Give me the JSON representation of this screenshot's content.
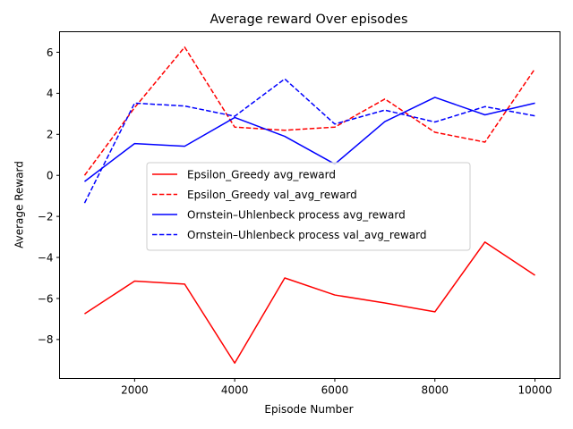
{
  "chart_data": {
    "type": "line",
    "title": "Average reward Over episodes",
    "xlabel": "Episode Number",
    "ylabel": "Average Reward",
    "x": [
      1000,
      2000,
      3000,
      4000,
      5000,
      6000,
      7000,
      8000,
      9000,
      10000
    ],
    "xlim": [
      500,
      10500
    ],
    "ylim": [
      -9.9,
      7.0
    ],
    "x_ticks": [
      2000,
      4000,
      6000,
      8000,
      10000
    ],
    "x_tick_labels": [
      "2000",
      "4000",
      "6000",
      "8000",
      "10000"
    ],
    "y_ticks": [
      -8,
      -6,
      -4,
      -2,
      0,
      2,
      4,
      6
    ],
    "y_tick_labels": [
      "−8",
      "−6",
      "−4",
      "−2",
      "0",
      "2",
      "4",
      "6"
    ],
    "grid": false,
    "legend_position": "center",
    "series": [
      {
        "name": "Epsilon_Greedy avg_reward",
        "color": "#ff0000",
        "style": "solid",
        "values": [
          -6.75,
          -5.15,
          -5.3,
          -9.15,
          -5.0,
          -5.83,
          -6.22,
          -6.65,
          -3.25,
          -4.87
        ]
      },
      {
        "name": "Epsilon_Greedy val_avg_reward",
        "color": "#ff0000",
        "style": "dashed",
        "values": [
          0.0,
          3.3,
          6.25,
          2.35,
          2.2,
          2.35,
          3.72,
          2.1,
          1.62,
          5.2
        ]
      },
      {
        "name": "Ornstein–Uhlenbeck process avg_reward",
        "color": "#0000ff",
        "style": "solid",
        "values": [
          -0.3,
          1.55,
          1.42,
          2.82,
          1.9,
          0.55,
          2.62,
          3.8,
          2.95,
          3.52
        ]
      },
      {
        "name": "Ornstein–Uhlenbeck process val_avg_reward",
        "color": "#0000ff",
        "style": "dashed",
        "values": [
          -1.35,
          3.52,
          3.38,
          2.88,
          4.7,
          2.5,
          3.18,
          2.6,
          3.35,
          2.9
        ]
      }
    ]
  }
}
